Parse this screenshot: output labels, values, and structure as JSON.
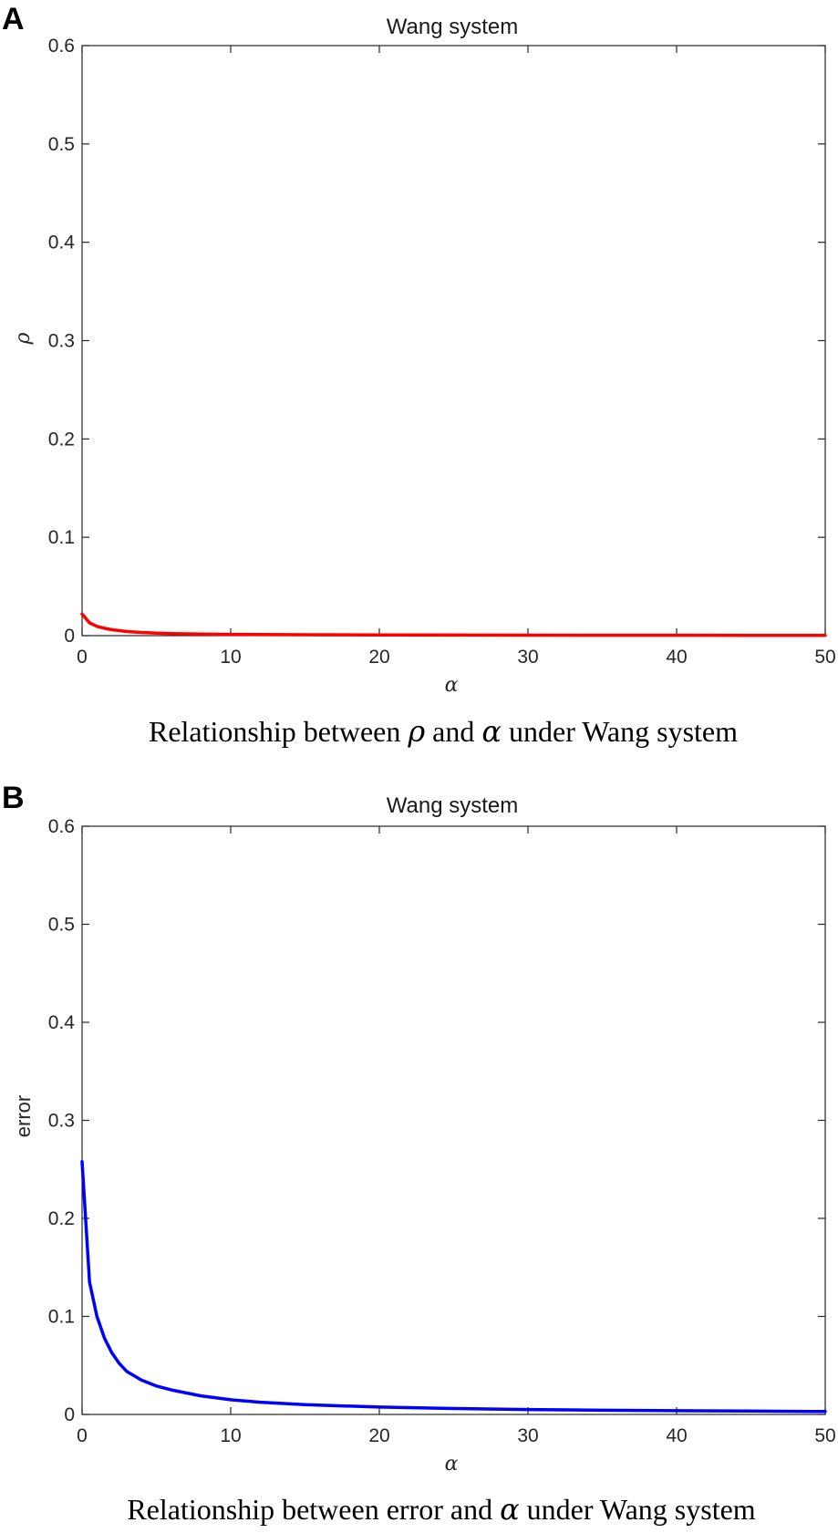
{
  "chart_data": [
    {
      "panel": "A",
      "type": "line",
      "title": "Wang system",
      "xlabel": "α",
      "ylabel": "ρ",
      "xlim": [
        0,
        50
      ],
      "ylim": [
        0,
        0.6
      ],
      "xticks": [
        "0",
        "10",
        "20",
        "30",
        "40",
        "50"
      ],
      "yticks": [
        "0",
        "0.1",
        "0.2",
        "0.3",
        "0.4",
        "0.5",
        "0.6"
      ],
      "grid": false,
      "series": [
        {
          "color": "#ff0000",
          "x": [
            0,
            0.5,
            1,
            1.5,
            2,
            3,
            4,
            5,
            6,
            8,
            10,
            15,
            20,
            25,
            30,
            35,
            40,
            45,
            50
          ],
          "y": [
            0.022,
            0.013,
            0.0095,
            0.0075,
            0.006,
            0.0042,
            0.0032,
            0.0025,
            0.0021,
            0.0016,
            0.0013,
            0.0009,
            0.0007,
            0.0006,
            0.0005,
            0.0004,
            0.0004,
            0.0003,
            0.0003
          ]
        }
      ],
      "caption": {
        "part1": "Relationship between ",
        "sym1": "ρ",
        "part2": " and ",
        "sym2": "α",
        "part3": " under Wang system"
      }
    },
    {
      "panel": "B",
      "type": "line",
      "title": "Wang system",
      "xlabel": "α",
      "ylabel": "error",
      "xlim": [
        0,
        50
      ],
      "ylim": [
        0,
        0.6
      ],
      "xticks": [
        "0",
        "10",
        "20",
        "30",
        "40",
        "50"
      ],
      "yticks": [
        "0",
        "0.1",
        "0.2",
        "0.3",
        "0.4",
        "0.5",
        "0.6"
      ],
      "grid": false,
      "series": [
        {
          "color": "#0000ff",
          "x": [
            0,
            0.5,
            1,
            1.5,
            2,
            2.5,
            3,
            4,
            5,
            6,
            8,
            10,
            12,
            15,
            20,
            25,
            30,
            35,
            40,
            45,
            50
          ],
          "y": [
            0.258,
            0.135,
            0.1,
            0.078,
            0.063,
            0.052,
            0.044,
            0.035,
            0.029,
            0.025,
            0.019,
            0.015,
            0.0125,
            0.01,
            0.0075,
            0.006,
            0.005,
            0.0043,
            0.0038,
            0.0034,
            0.003
          ]
        }
      ],
      "caption": {
        "part1": "Relationship between error and ",
        "sym1": "α",
        "part2": " under Wang system",
        "sym2": "",
        "part3": ""
      }
    }
  ]
}
